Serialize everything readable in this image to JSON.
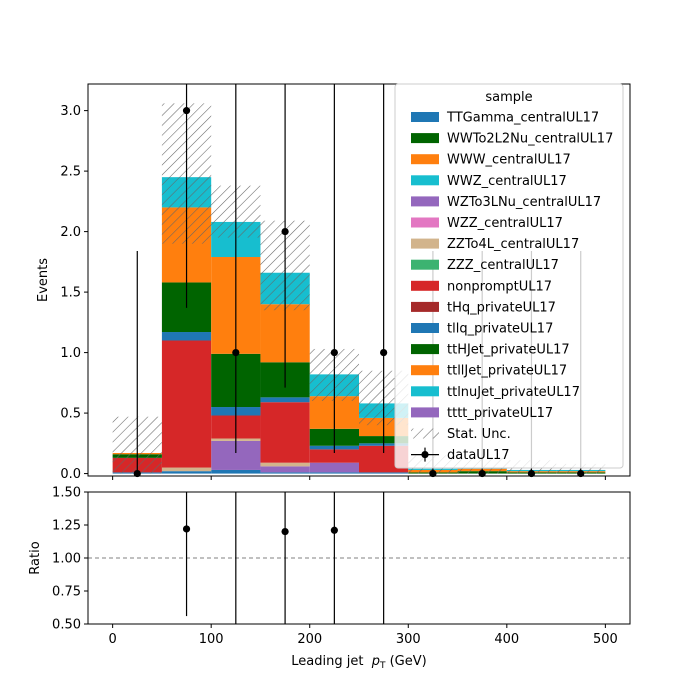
{
  "chart_data": {
    "type": "bar",
    "stacked": true,
    "xlabel": "Leading jet  p_T (GeV)",
    "xlabel_parts": {
      "text": "Leading jet  ",
      "symbol": "p",
      "subscript": "T",
      "unit": " (GeV)"
    },
    "ylabel": "Events",
    "ratio_ylabel": "Ratio",
    "xlim": [
      -25,
      525
    ],
    "ylim": [
      -0.02,
      3.22
    ],
    "ratio_ylim": [
      0.5,
      1.5
    ],
    "x_ticks": [
      0,
      100,
      200,
      300,
      400,
      500
    ],
    "x_tick_labels": [
      "0",
      "100",
      "200",
      "300",
      "400",
      "500"
    ],
    "y_ticks": [
      0.0,
      0.5,
      1.0,
      1.5,
      2.0,
      2.5,
      3.0
    ],
    "y_tick_labels": [
      "0.0",
      "0.5",
      "1.0",
      "1.5",
      "2.0",
      "2.5",
      "3.0"
    ],
    "ratio_y_ticks": [
      0.5,
      0.75,
      1.0,
      1.25,
      1.5
    ],
    "ratio_y_tick_labels": [
      "0.50",
      "0.75",
      "1.00",
      "1.25",
      "1.50"
    ],
    "ratio_reference": 1.0,
    "legend_title": "sample",
    "legend_position": "top-right",
    "bin_edges": [
      0,
      50,
      100,
      150,
      200,
      250,
      300,
      350,
      400,
      450,
      500
    ],
    "series": [
      {
        "name": "TTGamma_centralUL17",
        "color": "#1f77b4",
        "values": [
          0.01,
          0.02,
          0.03,
          0.01,
          0.01,
          0.01,
          0.0,
          0.0,
          0.0,
          0.0
        ]
      },
      {
        "name": "WWTo2L2Nu_centralUL17",
        "color": "#006400",
        "values": [
          0.0,
          0.0,
          0.0,
          0.0,
          0.0,
          0.0,
          0.0,
          0.0,
          0.0,
          0.0
        ]
      },
      {
        "name": "WWW_centralUL17",
        "color": "#ff7f0e",
        "values": [
          0.0,
          0.0,
          0.0,
          0.0,
          0.0,
          0.0,
          0.0,
          0.0,
          0.0,
          0.0
        ]
      },
      {
        "name": "WWZ_centralUL17",
        "color": "#17becf",
        "values": [
          0.0,
          0.0,
          0.0,
          0.0,
          0.0,
          0.0,
          0.0,
          0.0,
          0.0,
          0.0
        ]
      },
      {
        "name": "WZTo3LNu_centralUL17",
        "color": "#9467bd",
        "values": [
          0.0,
          0.0,
          0.24,
          0.05,
          0.08,
          0.0,
          0.0,
          0.0,
          0.0,
          0.0
        ]
      },
      {
        "name": "WZZ_centralUL17",
        "color": "#e377c2",
        "values": [
          0.0,
          0.0,
          0.0,
          0.0,
          0.0,
          0.0,
          0.0,
          0.0,
          0.0,
          0.0
        ]
      },
      {
        "name": "ZZTo4L_centralUL17",
        "color": "#d2b48c",
        "values": [
          0.0,
          0.03,
          0.02,
          0.03,
          0.0,
          0.0,
          0.0,
          0.0,
          0.0,
          0.0
        ]
      },
      {
        "name": "ZZZ_centralUL17",
        "color": "#3cb371",
        "values": [
          0.0,
          0.0,
          0.0,
          0.0,
          0.0,
          0.0,
          0.0,
          0.0,
          0.0,
          0.0
        ]
      },
      {
        "name": "nonpromptUL17",
        "color": "#d62728",
        "values": [
          0.12,
          1.05,
          0.19,
          0.5,
          0.11,
          0.22,
          0.0,
          0.0,
          0.0,
          0.0
        ]
      },
      {
        "name": "tHq_privateUL17",
        "color": "#a52a2a",
        "values": [
          0.0,
          0.0,
          0.0,
          0.0,
          0.0,
          0.0,
          0.0,
          0.0,
          0.0,
          0.0
        ]
      },
      {
        "name": "tllq_privateUL17",
        "color": "#1f77b4",
        "values": [
          0.0,
          0.07,
          0.07,
          0.04,
          0.03,
          0.02,
          0.0,
          0.0,
          0.0,
          0.0
        ]
      },
      {
        "name": "ttHJet_privateUL17",
        "color": "#006400",
        "values": [
          0.03,
          0.41,
          0.44,
          0.29,
          0.14,
          0.06,
          0.01,
          0.02,
          0.01,
          0.01
        ]
      },
      {
        "name": "ttllJet_privateUL17",
        "color": "#ff7f0e",
        "values": [
          0.01,
          0.62,
          0.8,
          0.48,
          0.27,
          0.15,
          0.02,
          0.02,
          0.01,
          0.01
        ]
      },
      {
        "name": "ttlnuJet_privateUL17",
        "color": "#17becf",
        "values": [
          0.0,
          0.25,
          0.29,
          0.26,
          0.18,
          0.12,
          0.01,
          0.01,
          0.01,
          0.01
        ]
      },
      {
        "name": "tttt_privateUL17",
        "color": "#9467bd",
        "values": [
          0.0,
          0.0,
          0.0,
          0.0,
          0.0,
          0.0,
          0.0,
          0.0,
          0.0,
          0.0
        ]
      }
    ],
    "stat_unc": {
      "name": "Stat. Unc.",
      "low": [
        0.0,
        1.9,
        1.95,
        1.35,
        0.6,
        0.4,
        0.0,
        0.0,
        0.0,
        0.0
      ],
      "high": [
        0.47,
        3.06,
        2.38,
        2.09,
        1.03,
        0.85,
        0.15,
        0.13,
        0.11,
        0.08
      ]
    },
    "data": {
      "name": "dataUL17",
      "x": [
        25,
        75,
        125,
        175,
        225,
        275,
        325,
        375,
        425,
        475
      ],
      "y": [
        0,
        3,
        1,
        2,
        1,
        1,
        0,
        0,
        0,
        0
      ],
      "yerr_low": [
        0,
        1.63,
        0.83,
        1.29,
        0.83,
        0.83,
        0,
        0,
        0,
        0
      ],
      "yerr_high": [
        1.84,
        2.92,
        2.3,
        2.63,
        2.3,
        2.3,
        1.84,
        1.84,
        1.84,
        1.84
      ]
    },
    "ratio": {
      "x": [
        75,
        175,
        225
      ],
      "y": [
        1.22,
        1.2,
        1.21
      ],
      "yerr_low": [
        0.66,
        0.8,
        0.8
      ],
      "yerr_high": [
        1.2,
        1.6,
        1.9
      ],
      "line_only_x": [
        125,
        275
      ]
    }
  }
}
